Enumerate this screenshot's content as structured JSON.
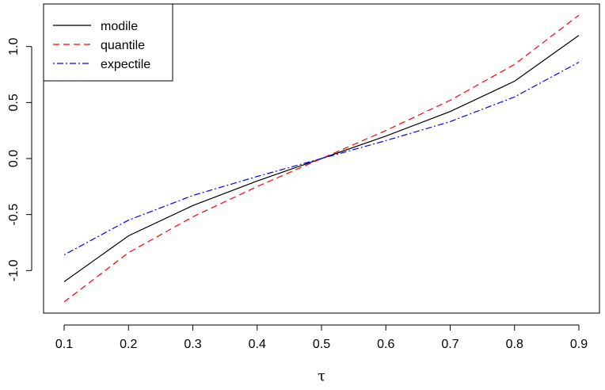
{
  "chart_data": {
    "type": "line",
    "title": "",
    "xlabel": "τ",
    "ylabel": "",
    "x": [
      0.1,
      0.2,
      0.3,
      0.4,
      0.5,
      0.6,
      0.7,
      0.8,
      0.9
    ],
    "xticks": [
      "0.1",
      "0.2",
      "0.3",
      "0.4",
      "0.5",
      "0.6",
      "0.7",
      "0.8",
      "0.9"
    ],
    "yticks": [
      "-1.0",
      "-0.5",
      "0.0",
      "0.5",
      "1.0"
    ],
    "ytick_values": [
      -1.0,
      -0.5,
      0.0,
      0.5,
      1.0
    ],
    "xlim": [
      0.068,
      0.932
    ],
    "ylim": [
      -1.38,
      1.38
    ],
    "grid": false,
    "legend_position": "top-left",
    "series": [
      {
        "name": "modile",
        "color": "#000000",
        "dash": "solid",
        "values": [
          -1.1,
          -0.69,
          -0.42,
          -0.2,
          0.0,
          0.2,
          0.42,
          0.69,
          1.1
        ]
      },
      {
        "name": "quantile",
        "color": "#ff0000",
        "dash": "dashed",
        "values": [
          -1.28,
          -0.84,
          -0.52,
          -0.25,
          0.0,
          0.25,
          0.52,
          0.84,
          1.28
        ]
      },
      {
        "name": "expectile",
        "color": "#0000ff",
        "dash": "dotdash",
        "values": [
          -0.86,
          -0.55,
          -0.33,
          -0.16,
          0.0,
          0.16,
          0.33,
          0.55,
          0.86
        ]
      }
    ]
  }
}
